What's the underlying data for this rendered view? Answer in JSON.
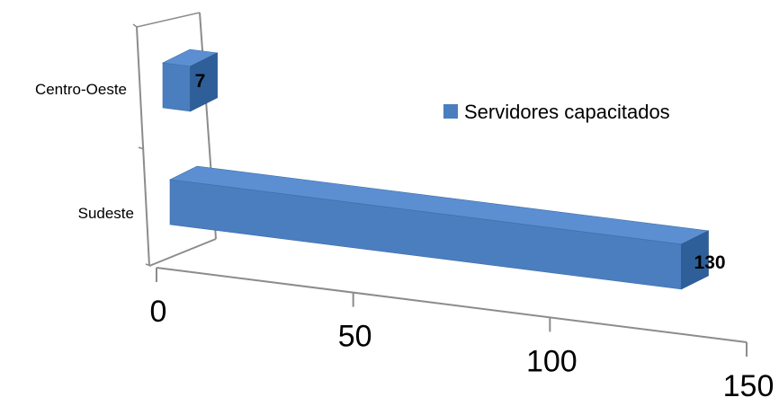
{
  "chart_data": {
    "type": "bar",
    "orientation": "horizontal",
    "style": "3d",
    "categories": [
      "Centro-Oeste",
      "Sudeste"
    ],
    "series": [
      {
        "name": "Servidores capacitados",
        "values": [
          7,
          130
        ]
      }
    ],
    "xlim": [
      0,
      150
    ],
    "xticks": [
      0,
      50,
      100,
      150
    ],
    "legend_position": "right",
    "grid": false,
    "colors": {
      "front": "#4a7ebf",
      "top": "#5b8fd1",
      "side": "#2f5f99",
      "axis": "#8c8c8c"
    }
  }
}
